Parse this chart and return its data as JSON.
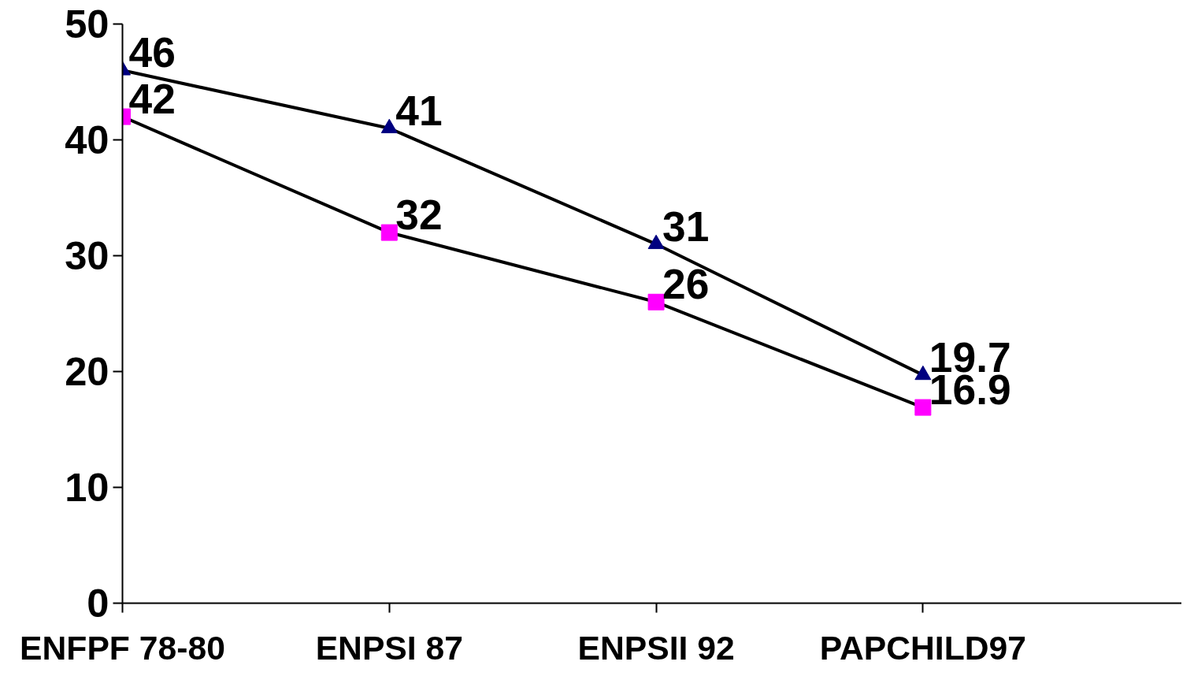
{
  "chart_data": {
    "type": "line",
    "categories": [
      "ENFPF 78-80",
      "ENPSI 87",
      "ENPSII 92",
      "PAPCHILD97"
    ],
    "series": [
      {
        "color": "#000080",
        "marker": "triangle",
        "values": [
          46,
          41,
          31,
          19.7
        ]
      },
      {
        "color": "#ff00ff",
        "marker": "square",
        "values": [
          42,
          32,
          26,
          16.9
        ]
      }
    ],
    "ylim": [
      0,
      50
    ],
    "yticks": [
      0,
      10,
      20,
      30,
      40,
      50
    ],
    "data_labels": true,
    "grid": false,
    "line_style": "solid"
  }
}
